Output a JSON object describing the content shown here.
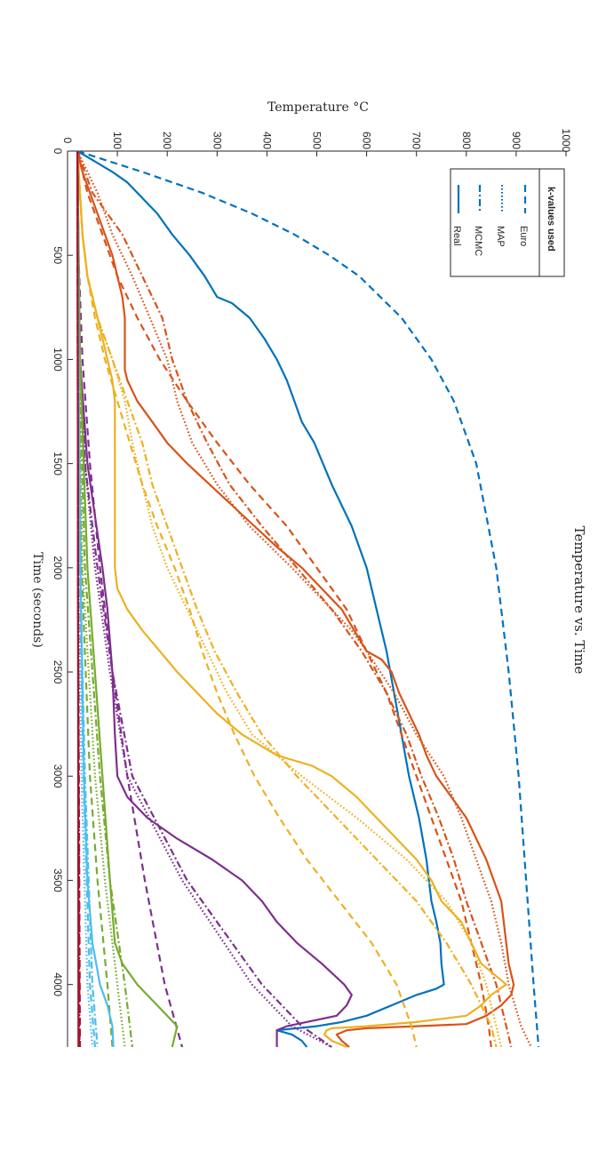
{
  "chart_data": {
    "type": "line",
    "title": "Temperature vs.  Time",
    "xlabel": "Time (seconds)",
    "ylabel": "Temperature °C",
    "xlim": [
      0,
      4300
    ],
    "ylim": [
      0,
      1000
    ],
    "xticks": [
      0,
      500,
      1000,
      1500,
      2000,
      2500,
      3000,
      3500,
      4000
    ],
    "yticks": [
      0,
      100,
      200,
      300,
      400,
      500,
      600,
      700,
      800,
      900,
      1000
    ],
    "grid": false,
    "legend": {
      "title": "k-values used",
      "position": "top-right",
      "entries": [
        {
          "label": "Euro",
          "style": "dashed"
        },
        {
          "label": "MAP",
          "style": "dotted"
        },
        {
          "label": "MCMC",
          "style": "dash-dot"
        },
        {
          "label": "Real",
          "style": "solid"
        }
      ]
    },
    "colors": {
      "blue": "#0072BD",
      "orange": "#D95319",
      "yellow": "#EDB120",
      "purple": "#7E2F8E",
      "green": "#77AC30",
      "cyan": "#4DBEEE",
      "red": "#A2142F"
    },
    "series": [
      {
        "color": "blue",
        "style": "dashed",
        "x": [
          0,
          100,
          200,
          300,
          400,
          500,
          600,
          800,
          1000,
          1200,
          1500,
          2000,
          2500,
          3000,
          3500,
          4000,
          4300
        ],
        "y": [
          20,
          150,
          270,
          370,
          455,
          525,
          585,
          670,
          730,
          775,
          820,
          860,
          885,
          905,
          920,
          935,
          945
        ]
      },
      {
        "color": "blue",
        "style": "solid",
        "x": [
          0,
          50,
          100,
          150,
          200,
          250,
          300,
          400,
          500,
          600,
          700,
          730,
          800,
          900,
          1000,
          1100,
          1200,
          1300,
          1400,
          1600,
          1800,
          2000,
          2200,
          2400,
          2600,
          2800,
          3000,
          3200,
          3400,
          3600,
          3700,
          3800,
          3900,
          4000,
          4020,
          4050,
          4100,
          4150,
          4180,
          4200,
          4210,
          4220,
          4240,
          4270,
          4300
        ],
        "y": [
          20,
          55,
          90,
          120,
          140,
          160,
          180,
          210,
          245,
          275,
          300,
          330,
          365,
          395,
          420,
          440,
          455,
          470,
          495,
          530,
          570,
          600,
          620,
          640,
          655,
          670,
          685,
          705,
          720,
          730,
          740,
          748,
          750,
          755,
          740,
          700,
          650,
          600,
          550,
          500,
          460,
          420,
          450,
          470,
          480
        ]
      },
      {
        "color": "orange",
        "style": "dashed",
        "x": [
          0,
          200,
          400,
          600,
          800,
          1000,
          1200,
          1400,
          1600,
          1800,
          2000,
          2200,
          2400,
          2600,
          2800,
          3000,
          3200,
          3400,
          3600,
          3800,
          4000,
          4200,
          4300
        ],
        "y": [
          20,
          40,
          70,
          100,
          140,
          185,
          240,
          300,
          365,
          440,
          500,
          560,
          600,
          640,
          670,
          700,
          730,
          760,
          790,
          810,
          830,
          845,
          850
        ]
      },
      {
        "color": "orange",
        "style": "dotted",
        "x": [
          0,
          200,
          400,
          600,
          800,
          1000,
          1200,
          1400,
          1600,
          1800,
          2000,
          2200,
          2300,
          2400,
          2600,
          2800,
          3000,
          3200,
          3400,
          3600,
          3800,
          4000,
          4200,
          4300
        ],
        "y": [
          20,
          60,
          90,
          130,
          165,
          200,
          220,
          250,
          300,
          365,
          450,
          530,
          570,
          600,
          655,
          700,
          755,
          790,
          820,
          850,
          870,
          885,
          910,
          930
        ]
      },
      {
        "color": "orange",
        "style": "dash-dot",
        "x": [
          0,
          200,
          400,
          600,
          800,
          1000,
          1200,
          1400,
          1600,
          1800,
          2000,
          2200,
          2400,
          2600,
          2800,
          3000,
          3200,
          3400,
          3600,
          3800,
          4000,
          4200,
          4300
        ],
        "y": [
          20,
          50,
          110,
          150,
          190,
          210,
          240,
          280,
          325,
          390,
          460,
          530,
          590,
          640,
          680,
          710,
          745,
          775,
          800,
          830,
          860,
          880,
          890
        ]
      },
      {
        "color": "orange",
        "style": "solid",
        "x": [
          0,
          100,
          200,
          300,
          400,
          500,
          600,
          700,
          800,
          900,
          1000,
          1050,
          1100,
          1200,
          1300,
          1400,
          1500,
          1600,
          1700,
          1800,
          1900,
          2000,
          2100,
          2200,
          2300,
          2400,
          2440,
          2500,
          2600,
          2700,
          2800,
          2900,
          3000,
          3100,
          3200,
          3300,
          3400,
          3500,
          3600,
          3700,
          3800,
          3900,
          4000,
          4050,
          4100,
          4150,
          4190,
          4200,
          4210,
          4220,
          4240,
          4270,
          4300
        ],
        "y": [
          20,
          30,
          45,
          60,
          75,
          90,
          100,
          110,
          115,
          115,
          115,
          115,
          120,
          140,
          170,
          200,
          240,
          285,
          330,
          375,
          420,
          470,
          510,
          550,
          575,
          600,
          630,
          650,
          665,
          685,
          705,
          720,
          740,
          770,
          800,
          820,
          840,
          855,
          870,
          875,
          880,
          885,
          895,
          890,
          870,
          840,
          800,
          700,
          600,
          560,
          540,
          550,
          565
        ]
      },
      {
        "color": "yellow",
        "style": "dashed",
        "x": [
          0,
          200,
          400,
          600,
          800,
          1000,
          1200,
          1400,
          1600,
          1800,
          2000,
          2200,
          2400,
          2600,
          2800,
          3000,
          3200,
          3400,
          3600,
          3800,
          4000,
          4200,
          4300
        ],
        "y": [
          20,
          25,
          30,
          40,
          55,
          75,
          100,
          125,
          150,
          180,
          215,
          245,
          270,
          300,
          335,
          375,
          425,
          480,
          545,
          610,
          660,
          690,
          700
        ]
      },
      {
        "color": "yellow",
        "style": "dotted",
        "x": [
          0,
          200,
          400,
          600,
          800,
          1000,
          1200,
          1400,
          1600,
          1800,
          2000,
          2200,
          2400,
          2600,
          2800,
          3000,
          3200,
          3400,
          3600,
          3800,
          4000,
          4200,
          4300
        ],
        "y": [
          20,
          25,
          30,
          40,
          60,
          90,
          115,
          130,
          150,
          170,
          200,
          240,
          280,
          320,
          370,
          470,
          580,
          680,
          760,
          810,
          840,
          860,
          870
        ]
      },
      {
        "color": "yellow",
        "style": "dash-dot",
        "x": [
          0,
          200,
          400,
          600,
          800,
          1000,
          1200,
          1400,
          1600,
          1800,
          2000,
          2200,
          2400,
          2600,
          2800,
          3000,
          3200,
          3400,
          3600,
          3800,
          4000,
          4200,
          4300
        ],
        "y": [
          20,
          25,
          30,
          40,
          60,
          90,
          120,
          150,
          170,
          200,
          230,
          260,
          295,
          340,
          390,
          460,
          540,
          620,
          700,
          760,
          810,
          850,
          860
        ]
      },
      {
        "color": "yellow",
        "style": "solid",
        "x": [
          0,
          200,
          400,
          600,
          800,
          1000,
          1100,
          1200,
          1400,
          1600,
          1800,
          2000,
          2100,
          2200,
          2300,
          2400,
          2500,
          2600,
          2700,
          2800,
          2900,
          2950,
          3000,
          3100,
          3200,
          3300,
          3400,
          3500,
          3600,
          3700,
          3800,
          3900,
          4000,
          4050,
          4100,
          4150,
          4180,
          4200,
          4210,
          4220,
          4240,
          4270,
          4300
        ],
        "y": [
          20,
          25,
          30,
          40,
          60,
          80,
          90,
          95,
          95,
          95,
          95,
          95,
          100,
          120,
          150,
          185,
          220,
          260,
          300,
          350,
          420,
          490,
          530,
          580,
          620,
          660,
          700,
          730,
          750,
          790,
          810,
          830,
          880,
          850,
          830,
          800,
          700,
          600,
          530,
          520,
          515,
          530,
          560
        ]
      },
      {
        "color": "purple",
        "style": "dashed",
        "x": [
          0,
          500,
          1000,
          1500,
          2000,
          2500,
          3000,
          3500,
          4000,
          4300
        ],
        "y": [
          20,
          22,
          30,
          45,
          65,
          90,
          120,
          155,
          195,
          230
        ]
      },
      {
        "color": "purple",
        "style": "dotted",
        "x": [
          0,
          500,
          1000,
          1500,
          2000,
          2500,
          3000,
          3500,
          4000,
          4200,
          4300
        ],
        "y": [
          20,
          22,
          25,
          35,
          55,
          85,
          120,
          230,
          370,
          450,
          530
        ]
      },
      {
        "color": "purple",
        "style": "dash-dot",
        "x": [
          0,
          500,
          1000,
          1500,
          2000,
          2500,
          3000,
          3500,
          4000,
          4200,
          4300
        ],
        "y": [
          20,
          22,
          25,
          35,
          60,
          90,
          130,
          240,
          390,
          470,
          530
        ]
      },
      {
        "color": "purple",
        "style": "solid",
        "x": [
          0,
          500,
          1000,
          1500,
          2000,
          2200,
          2500,
          2800,
          3000,
          3100,
          3200,
          3300,
          3400,
          3500,
          3600,
          3700,
          3800,
          3900,
          4000,
          4050,
          4100,
          4150,
          4200,
          4220,
          4250,
          4280,
          4300
        ],
        "y": [
          20,
          22,
          25,
          40,
          70,
          80,
          90,
          95,
          100,
          120,
          160,
          220,
          290,
          350,
          390,
          420,
          460,
          510,
          555,
          570,
          560,
          540,
          440,
          420,
          420,
          420,
          420
        ]
      },
      {
        "color": "green",
        "style": "dashed",
        "x": [
          0,
          1000,
          2000,
          3000,
          3500,
          4000,
          4300
        ],
        "y": [
          20,
          22,
          28,
          45,
          60,
          80,
          90
        ]
      },
      {
        "color": "green",
        "style": "dotted",
        "x": [
          0,
          1000,
          2000,
          3000,
          3500,
          4000,
          4300
        ],
        "y": [
          20,
          22,
          30,
          55,
          75,
          100,
          115
        ]
      },
      {
        "color": "green",
        "style": "dash-dot",
        "x": [
          0,
          1000,
          2000,
          3000,
          3500,
          4000,
          4300
        ],
        "y": [
          20,
          23,
          35,
          65,
          85,
          115,
          130
        ]
      },
      {
        "color": "green",
        "style": "solid",
        "x": [
          0,
          1000,
          2000,
          3000,
          3500,
          3800,
          3900,
          4000,
          4100,
          4200,
          4250,
          4300
        ],
        "y": [
          20,
          25,
          40,
          70,
          85,
          95,
          110,
          140,
          180,
          220,
          215,
          210
        ]
      },
      {
        "color": "cyan",
        "style": "dashed",
        "x": [
          0,
          1000,
          2000,
          3000,
          4000,
          4300
        ],
        "y": [
          20,
          21,
          24,
          32,
          45,
          55
        ]
      },
      {
        "color": "cyan",
        "style": "dotted",
        "x": [
          0,
          1000,
          2000,
          3000,
          4000,
          4300
        ],
        "y": [
          20,
          21,
          23,
          28,
          40,
          50
        ]
      },
      {
        "color": "cyan",
        "style": "dash-dot",
        "x": [
          0,
          1000,
          2000,
          3000,
          4000,
          4300
        ],
        "y": [
          20,
          21,
          25,
          35,
          50,
          60
        ]
      },
      {
        "color": "cyan",
        "style": "solid",
        "x": [
          0,
          1000,
          2000,
          3000,
          3500,
          3800,
          4000,
          4100,
          4200,
          4300
        ],
        "y": [
          20,
          22,
          26,
          33,
          40,
          50,
          65,
          80,
          90,
          92
        ]
      },
      {
        "color": "red",
        "style": "dashed",
        "x": [
          0,
          2000,
          4300
        ],
        "y": [
          20,
          21,
          25
        ]
      },
      {
        "color": "red",
        "style": "dotted",
        "x": [
          0,
          2000,
          4300
        ],
        "y": [
          20,
          21,
          23
        ]
      },
      {
        "color": "red",
        "style": "dash-dot",
        "x": [
          0,
          2000,
          4300
        ],
        "y": [
          20,
          21,
          24
        ]
      },
      {
        "color": "red",
        "style": "solid",
        "x": [
          0,
          2000,
          4300
        ],
        "y": [
          20,
          21,
          22
        ]
      }
    ]
  }
}
